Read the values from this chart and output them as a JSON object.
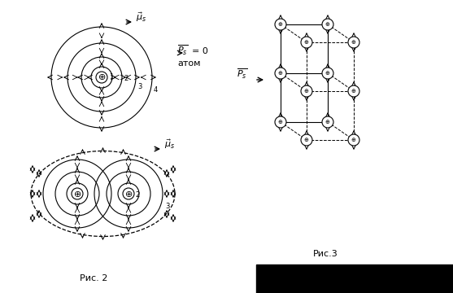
{
  "fig_width": 5.57,
  "fig_height": 3.6,
  "background": "#ffffff",
  "fig2_label": "Рис. 2",
  "fig3_label": "Рис.3",
  "atom_label": "атом",
  "mu_label": "$\\vec{\\mu}_s$",
  "ps_label": "$\\overrightarrow{P_s}$"
}
